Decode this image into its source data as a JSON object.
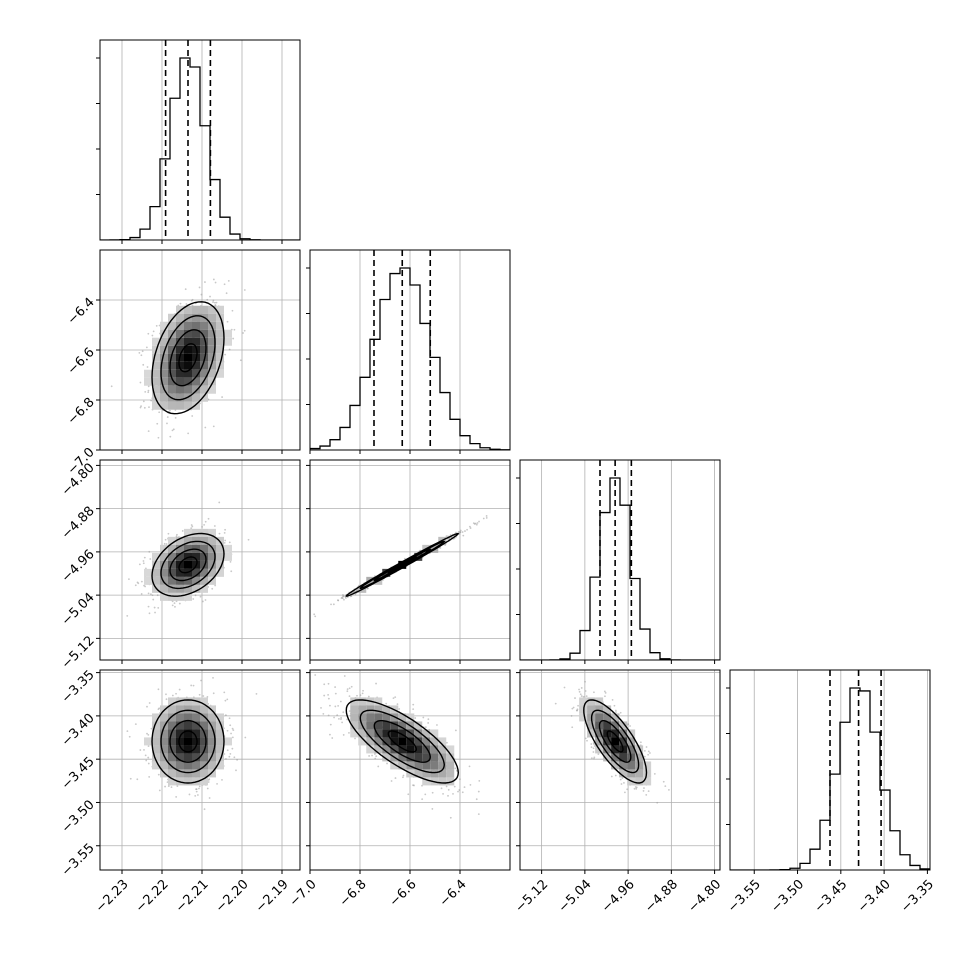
{
  "chart_data": {
    "type": "corner",
    "parameters": [
      {
        "range": [
          -2.2355,
          -2.1855
        ],
        "ticks": [
          "−2.23",
          "−2.22",
          "−2.21",
          "−2.20",
          "−2.19"
        ],
        "tick_values": [
          -2.23,
          -2.22,
          -2.21,
          -2.2,
          -2.19
        ],
        "quantiles": [
          -2.2191,
          -2.2135,
          -2.2079
        ],
        "center": -2.2135,
        "sd": 0.0045
      },
      {
        "range": [
          -7.0,
          -6.2
        ],
        "ticks": [
          "−7.0",
          "−6.8",
          "−6.6",
          "−6.4"
        ],
        "tick_values": [
          -7.0,
          -6.8,
          -6.6,
          -6.4
        ],
        "quantiles": [
          -6.744,
          -6.631,
          -6.519
        ],
        "center": -6.631,
        "sd": 0.112
      },
      {
        "range": [
          -5.16,
          -4.79
        ],
        "ticks": [
          "−5.12",
          "−5.04",
          "−4.96",
          "−4.88",
          "−4.80"
        ],
        "tick_values": [
          -5.12,
          -5.04,
          -4.96,
          -4.88,
          -4.8
        ],
        "quantiles": [
          -5.012,
          -4.984,
          -4.954
        ],
        "center": -4.984,
        "sd": 0.029
      },
      {
        "range": [
          -3.578,
          -3.347
        ],
        "ticks": [
          "−3.55",
          "−3.50",
          "−3.45",
          "−3.40",
          "−3.35"
        ],
        "tick_values": [
          -3.55,
          -3.5,
          -3.45,
          -3.4,
          -3.35
        ],
        "quantiles": [
          -3.4625,
          -3.4295,
          -3.4035
        ],
        "center": -3.4295,
        "sd": 0.024
      }
    ],
    "y_label_ticks": [
      null,
      {
        "ticks": [
          "−6.4",
          "−6.6",
          "−6.8",
          "−7.0"
        ],
        "tick_values": [
          -6.4,
          -6.6,
          -6.8,
          -7.0
        ]
      },
      {
        "ticks": [
          "−4.80",
          "−4.88",
          "−4.96",
          "−5.04",
          "−5.12"
        ],
        "tick_values": [
          -4.8,
          -4.88,
          -4.96,
          -5.04,
          -5.12
        ]
      },
      {
        "ticks": [
          "−3.35",
          "−3.40",
          "−3.45",
          "−3.50",
          "−3.55"
        ],
        "tick_values": [
          -3.35,
          -3.4,
          -3.45,
          -3.5,
          -3.55
        ]
      }
    ],
    "correlations": {
      "1-0": 0.35,
      "2-0": 0.35,
      "2-1": 0.995,
      "3-0": 0.0,
      "3-1": -0.75,
      "3-2": -0.75
    },
    "histogram_bins": 20,
    "grid": true,
    "colors": {
      "line": "#000000",
      "scatter": "#9a9a9a",
      "grid": "#b0b0b0"
    }
  }
}
